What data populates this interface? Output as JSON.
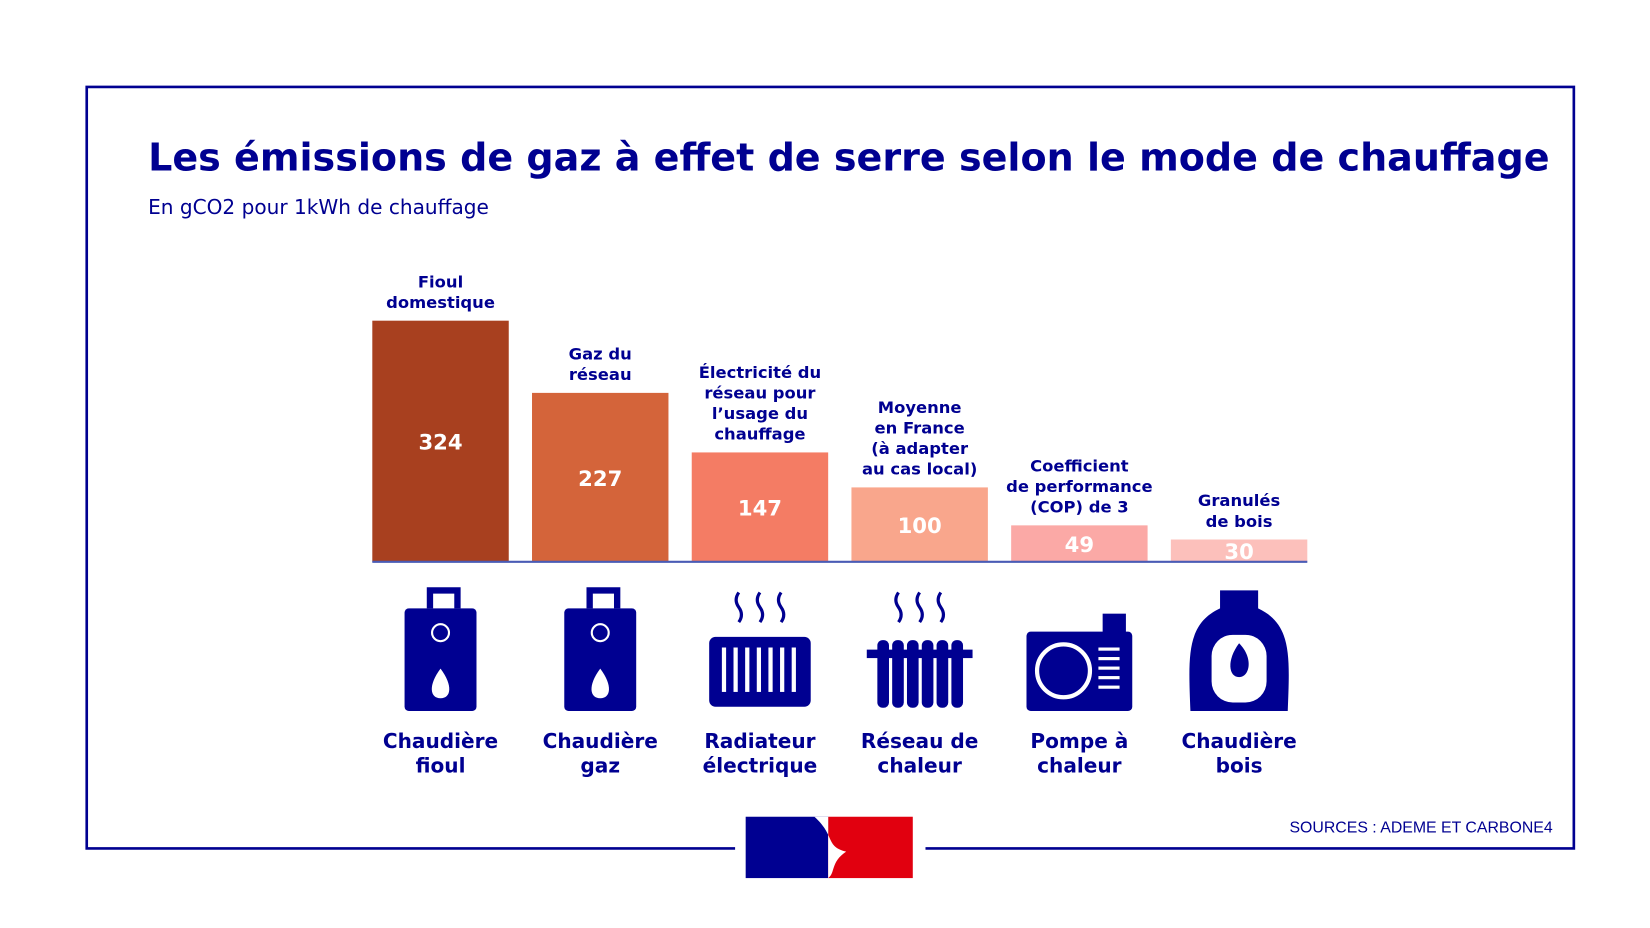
{
  "chart_data": {
    "type": "bar",
    "title": "Les émissions de gaz à effet de serre selon le mode de chauffage",
    "subtitle": "En gCO2 pour 1kWh de chauffage",
    "categories": [
      "Fioul\ndomestique",
      "Gaz du\nréseau",
      "Électricité du\nréseau pour\nl’usage du\nchauffage",
      "Moyenne\nen France\n(à adapter\nau cas local)",
      "Coefficient\nde performance\n(COP) de 3",
      "Granulés\nde bois"
    ],
    "values": [
      324,
      227,
      147,
      100,
      49,
      30
    ],
    "colors": [
      "#a8401f",
      "#d4643a",
      "#f47c64",
      "#f9a68c",
      "#fba9a6",
      "#fcc0bb"
    ],
    "systems": [
      "Chaudière\nfioul",
      "Chaudière\ngaz",
      "Radiateur\nélectrique",
      "Réseau de\nchaleur",
      "Pompe à\nchaleur",
      "Chaudière\nbois"
    ],
    "source": "SOURCES : ADEME ET CARBONE4"
  }
}
